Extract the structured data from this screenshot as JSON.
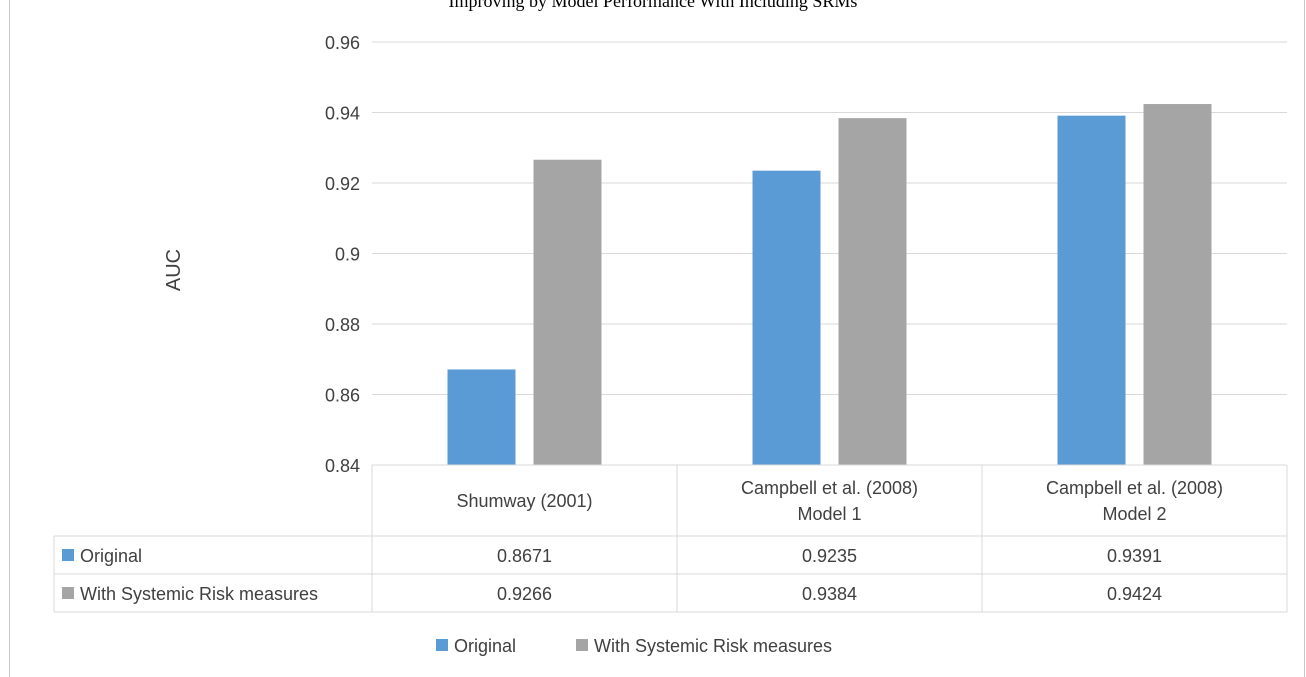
{
  "caption": "Improving by Model Performance With Including SRMs",
  "chart_data": {
    "type": "bar",
    "ylabel": "AUC",
    "ylim": [
      0.84,
      0.96
    ],
    "yticks": [
      "0.84",
      "0.86",
      "0.88",
      "0.9",
      "0.92",
      "0.94",
      "0.96"
    ],
    "grid": true,
    "categories": [
      [
        "Shumway (2001)"
      ],
      [
        "Campbell et al. (2008)",
        "Model 1"
      ],
      [
        "Campbell et al. (2008)",
        "Model 2"
      ]
    ],
    "series": [
      {
        "name": "Original",
        "color": "#5b9bd5",
        "values": [
          0.8671,
          0.9235,
          0.9391
        ],
        "labels": [
          "0.8671",
          "0.9235",
          "0.9391"
        ]
      },
      {
        "name": "With Systemic Risk measures",
        "color": "#a5a5a5",
        "values": [
          0.9266,
          0.9384,
          0.9424
        ],
        "labels": [
          "0.9266",
          "0.9384",
          "0.9424"
        ]
      }
    ],
    "data_table": true,
    "legend_position": "bottom"
  }
}
